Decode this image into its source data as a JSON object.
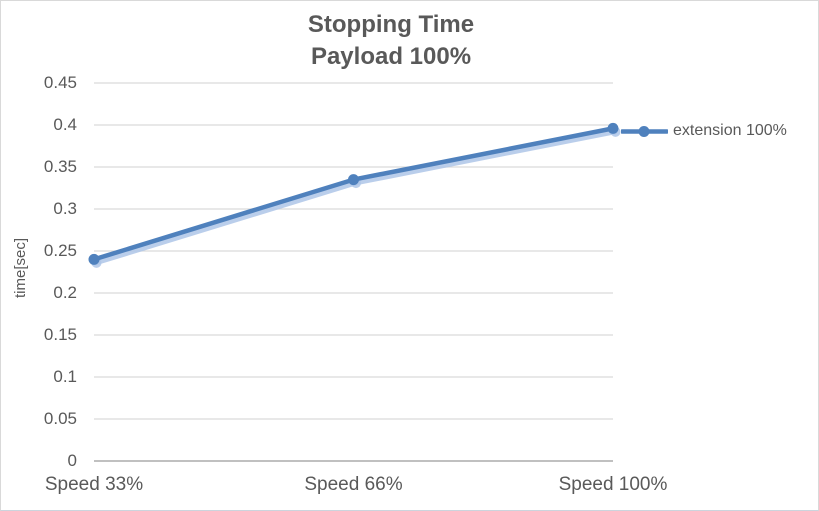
{
  "title": {
    "line1": "Stopping Time",
    "line2": "Payload 100%"
  },
  "y_axis": {
    "label": "time[sec]"
  },
  "legend": {
    "series_label": "extension 100%"
  },
  "colors": {
    "line": "#4f81bd",
    "line_shadow": "#aec6e8",
    "text": "#595959",
    "gridline": "#d9d9d9",
    "axis_line": "#c0c0c0",
    "background": "#ffffff",
    "border": "#d9d9d9"
  },
  "chart_data": {
    "type": "line",
    "title": "Stopping Time",
    "subtitle": "Payload 100%",
    "categories": [
      "Speed 33%",
      "Speed 66%",
      "Speed 100%"
    ],
    "series": [
      {
        "name": "extension 100%",
        "values": [
          0.24,
          0.335,
          0.396
        ]
      }
    ],
    "xlabel": "",
    "ylabel": "time[sec]",
    "ylim": [
      0,
      0.45
    ],
    "ytick_step": 0.05,
    "yticks": [
      "0",
      "0.05",
      "0.1",
      "0.15",
      "0.2",
      "0.25",
      "0.3",
      "0.35",
      "0.4",
      "0.45"
    ],
    "grid": true,
    "legend_position": "right",
    "marker": "circle"
  }
}
